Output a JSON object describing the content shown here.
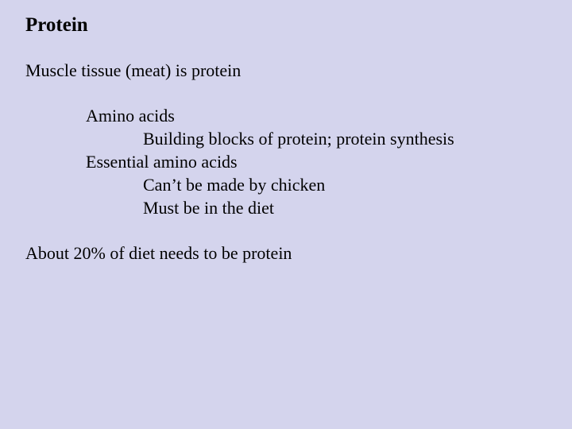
{
  "background_color": "#d4d4ed",
  "text_color": "#000000",
  "font_family": "Times New Roman",
  "title": {
    "text": "Protein",
    "fontsize": 25,
    "weight": "bold"
  },
  "body_fontsize": 22,
  "lines": {
    "muscle": "Muscle tissue (meat) is protein",
    "amino": "Amino acids",
    "building": "Building blocks of protein; protein synthesis",
    "essential": "Essential amino acids",
    "cant": "Can’t be made by chicken",
    "must": "Must be in the diet",
    "about": "About 20% of diet needs to be protein"
  }
}
